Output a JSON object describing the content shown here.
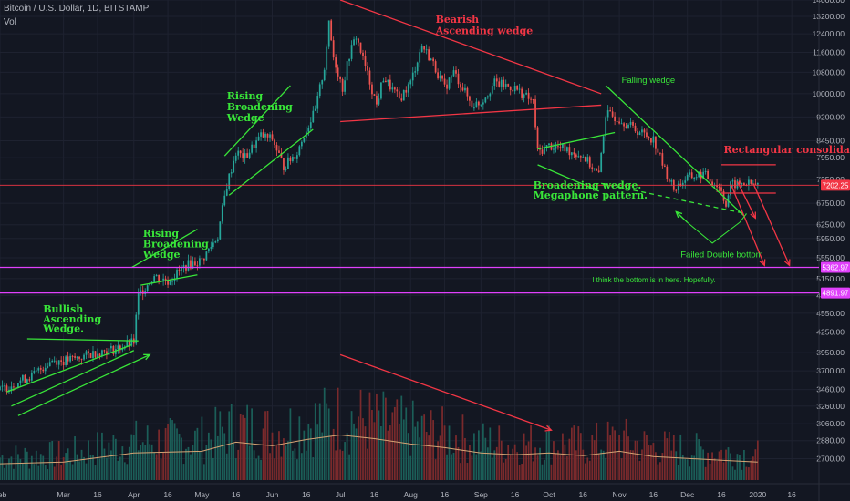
{
  "header": {
    "symbol": "Bitcoin / U.S. Dollar, 1D, BITSTAMP",
    "volume_label": "Vol"
  },
  "colors": {
    "background": "#131722",
    "up": "#26a69a",
    "down": "#ef5350",
    "annotation_green": "#39e639",
    "annotation_red": "#f23645",
    "magenta": "#e040fb",
    "axis_text": "#b2b5be"
  },
  "chart_data": {
    "type": "candlestick",
    "title": "",
    "xlabel": "",
    "ylabel": "",
    "y_scale": "log",
    "ylim": [
      2500,
      14000
    ],
    "y_ticks": [
      "14000.00",
      "13200.00",
      "12400.00",
      "11600.00",
      "10800.00",
      "10000.00",
      "9200.00",
      "8450.00",
      "7950.00",
      "7350.00",
      "6750.00",
      "6250.00",
      "5950.00",
      "5550.00",
      "5150.00",
      "4850.00",
      "4550.00",
      "4250.00",
      "3950.00",
      "3700.00",
      "3460.00",
      "3260.00",
      "3060.00",
      "2880.00",
      "2700.00"
    ],
    "x_ticks": [
      "Feb",
      "Mar",
      "16",
      "Apr",
      "16",
      "May",
      "16",
      "Jun",
      "16",
      "Jul",
      "16",
      "Aug",
      "16",
      "Sep",
      "16",
      "Oct",
      "16",
      "Nov",
      "16",
      "Dec",
      "16",
      "2020",
      "16"
    ],
    "x_tick_dates": [
      "2019-02-01",
      "2019-03-01",
      "2019-03-16",
      "2019-04-01",
      "2019-04-16",
      "2019-05-01",
      "2019-05-16",
      "2019-06-01",
      "2019-06-16",
      "2019-07-01",
      "2019-07-16",
      "2019-08-01",
      "2019-08-16",
      "2019-09-01",
      "2019-09-16",
      "2019-10-01",
      "2019-10-16",
      "2019-11-01",
      "2019-11-16",
      "2019-12-01",
      "2019-12-16",
      "2020-01-01",
      "2020-01-16"
    ],
    "price_path": [
      [
        "2019-02-01",
        3450
      ],
      [
        "2019-02-08",
        3550
      ],
      [
        "2019-02-16",
        3650
      ],
      [
        "2019-02-24",
        3850
      ],
      [
        "2019-03-01",
        3830
      ],
      [
        "2019-03-08",
        3880
      ],
      [
        "2019-03-16",
        3960
      ],
      [
        "2019-03-24",
        4000
      ],
      [
        "2019-04-01",
        4100
      ],
      [
        "2019-04-03",
        4850
      ],
      [
        "2019-04-10",
        5200
      ],
      [
        "2019-04-16",
        5100
      ],
      [
        "2019-04-24",
        5400
      ],
      [
        "2019-05-01",
        5500
      ],
      [
        "2019-05-08",
        6000
      ],
      [
        "2019-05-12",
        7200
      ],
      [
        "2019-05-16",
        8100
      ],
      [
        "2019-05-20",
        7950
      ],
      [
        "2019-05-27",
        8600
      ],
      [
        "2019-06-01",
        8500
      ],
      [
        "2019-06-06",
        7700
      ],
      [
        "2019-06-12",
        8100
      ],
      [
        "2019-06-16",
        8800
      ],
      [
        "2019-06-20",
        9400
      ],
      [
        "2019-06-24",
        11000
      ],
      [
        "2019-06-26",
        12800
      ],
      [
        "2019-06-28",
        11400
      ],
      [
        "2019-07-02",
        10200
      ],
      [
        "2019-07-05",
        11500
      ],
      [
        "2019-07-08",
        12300
      ],
      [
        "2019-07-12",
        11000
      ],
      [
        "2019-07-17",
        9600
      ],
      [
        "2019-07-20",
        10600
      ],
      [
        "2019-07-27",
        9800
      ],
      [
        "2019-08-01",
        10400
      ],
      [
        "2019-08-06",
        11900
      ],
      [
        "2019-08-10",
        11300
      ],
      [
        "2019-08-16",
        10200
      ],
      [
        "2019-08-20",
        10800
      ],
      [
        "2019-08-28",
        9600
      ],
      [
        "2019-09-01",
        9700
      ],
      [
        "2019-09-07",
        10400
      ],
      [
        "2019-09-16",
        10200
      ],
      [
        "2019-09-24",
        9700
      ],
      [
        "2019-09-26",
        8100
      ],
      [
        "2019-10-01",
        8300
      ],
      [
        "2019-10-08",
        8200
      ],
      [
        "2019-10-16",
        8000
      ],
      [
        "2019-10-23",
        7450
      ],
      [
        "2019-10-26",
        9300
      ],
      [
        "2019-11-01",
        9150
      ],
      [
        "2019-11-08",
        8800
      ],
      [
        "2019-11-16",
        8500
      ],
      [
        "2019-11-21",
        7600
      ],
      [
        "2019-11-25",
        7100
      ],
      [
        "2019-12-01",
        7400
      ],
      [
        "2019-12-08",
        7500
      ],
      [
        "2019-12-16",
        7100
      ],
      [
        "2019-12-18",
        6700
      ],
      [
        "2019-12-20",
        7200
      ],
      [
        "2019-12-26",
        7250
      ],
      [
        "2020-01-01",
        7202
      ]
    ],
    "volume_ylim": [
      0,
      1
    ],
    "series": [
      {
        "type": "horizontal-level",
        "values": [
          7202.25
        ],
        "label": "7202.25",
        "color": "#f23645"
      },
      {
        "type": "horizontal-level",
        "values": [
          5362.97
        ],
        "label": "5362.97",
        "color": "#e040fb"
      },
      {
        "type": "horizontal-level",
        "values": [
          4891.97
        ],
        "label": "4891.97",
        "color": "#e040fb"
      }
    ],
    "annotations": [
      {
        "text": "Bullish",
        "color": "#39e639"
      },
      {
        "text": "Ascending",
        "color": "#39e639"
      },
      {
        "text": "Wedge.",
        "color": "#39e639"
      },
      {
        "text": "Rising",
        "color": "#39e639"
      },
      {
        "text": "Broadening",
        "color": "#39e639"
      },
      {
        "text": "Wedge",
        "color": "#39e639"
      },
      {
        "text": "Rising",
        "color": "#39e639"
      },
      {
        "text": "Broadening",
        "color": "#39e639"
      },
      {
        "text": "Wedge",
        "color": "#39e639"
      },
      {
        "text": "Bearish",
        "color": "#f23645"
      },
      {
        "text": "Ascending wedge",
        "color": "#f23645"
      },
      {
        "text": "Falling wedge",
        "color": "#39e639"
      },
      {
        "text": "Broadening wedge.",
        "color": "#39e639"
      },
      {
        "text": "Megaphone pattern.",
        "color": "#39e639"
      },
      {
        "text": "Rectangular consolidation",
        "color": "#f23645"
      },
      {
        "text": "Failed Double bottom",
        "color": "#39e639"
      },
      {
        "text": "I think the bottom is in here. Hopefully.",
        "color": "#39e639"
      }
    ],
    "trendlines": [
      {
        "color": "#39e639",
        "from": [
          "2019-02-04",
          3430
        ],
        "to": [
          "2019-03-31",
          4060
        ]
      },
      {
        "color": "#39e639",
        "from": [
          "2019-02-13",
          4150
        ],
        "to": [
          "2019-04-03",
          4120
        ]
      },
      {
        "color": "#39e639",
        "from": [
          "2019-02-06",
          3260
        ],
        "to": [
          "2019-04-01",
          3980
        ]
      },
      {
        "color": "#39e639",
        "from": [
          "2019-03-31",
          5360
        ],
        "to": [
          "2019-04-29",
          6150
        ]
      },
      {
        "color": "#39e639",
        "from": [
          "2019-04-04",
          5030
        ],
        "to": [
          "2019-04-29",
          5220
        ]
      },
      {
        "color": "#39e639",
        "from": [
          "2019-05-13",
          6950
        ],
        "to": [
          "2019-06-19",
          8800
        ]
      },
      {
        "color": "#39e639",
        "from": [
          "2019-05-11",
          8000
        ],
        "to": [
          "2019-06-09",
          10300
        ]
      },
      {
        "color": "#f23645",
        "from": [
          "2019-07-01",
          9050
        ],
        "to": [
          "2019-10-24",
          9600
        ]
      },
      {
        "color": "#f23645",
        "from": [
          "2019-07-01",
          14000
        ],
        "to": [
          "2019-10-24",
          10000
        ]
      },
      {
        "color": "#39e639",
        "from": [
          "2019-09-26",
          8200
        ],
        "to": [
          "2019-10-30",
          8700
        ]
      },
      {
        "color": "#39e639",
        "from": [
          "2019-09-26",
          7750
        ],
        "to": [
          "2019-10-23",
          7050
        ]
      },
      {
        "color": "#39e639",
        "from": [
          "2019-10-26",
          10300
        ],
        "to": [
          "2019-12-26",
          6450
        ],
        "dashed": false
      },
      {
        "color": "#39e639",
        "from": [
          "2019-10-24",
          7250
        ],
        "to": [
          "2019-12-27",
          6500
        ],
        "dashed": true
      },
      {
        "color": "#f23645",
        "from": [
          "2019-12-16",
          7750
        ],
        "to": [
          "2020-01-09",
          7750
        ]
      },
      {
        "color": "#f23645",
        "from": [
          "2019-12-16",
          7000
        ],
        "to": [
          "2020-01-09",
          7000
        ]
      }
    ],
    "volume_path": [
      [
        "2019-02-01",
        0.18
      ],
      [
        "2019-03-01",
        0.2
      ],
      [
        "2019-04-01",
        0.3
      ],
      [
        "2019-05-01",
        0.32
      ],
      [
        "2019-05-16",
        0.42
      ],
      [
        "2019-06-01",
        0.38
      ],
      [
        "2019-06-16",
        0.45
      ],
      [
        "2019-07-01",
        0.5
      ],
      [
        "2019-07-16",
        0.46
      ],
      [
        "2019-08-01",
        0.4
      ],
      [
        "2019-08-16",
        0.36
      ],
      [
        "2019-09-01",
        0.3
      ],
      [
        "2019-09-16",
        0.28
      ],
      [
        "2019-10-01",
        0.3
      ],
      [
        "2019-10-16",
        0.27
      ],
      [
        "2019-11-01",
        0.32
      ],
      [
        "2019-11-16",
        0.26
      ],
      [
        "2019-12-01",
        0.24
      ],
      [
        "2019-12-16",
        0.22
      ],
      [
        "2020-01-01",
        0.2
      ]
    ]
  }
}
